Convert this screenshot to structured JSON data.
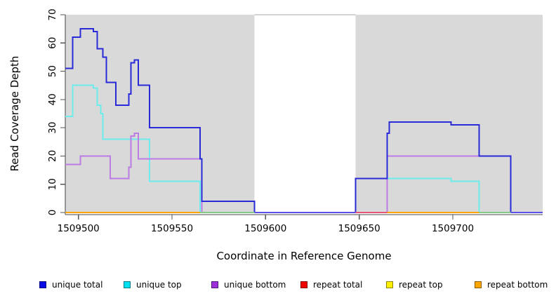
{
  "chart_data": {
    "type": "line",
    "subtype": "step-coverage",
    "title": "",
    "xlabel": "Coordinate in Reference Genome",
    "ylabel": "Read Coverage Depth",
    "xlim": [
      1509493,
      1509748
    ],
    "ylim": [
      0,
      70
    ],
    "grid": false,
    "legend_position": "bottom",
    "x_ticks": [
      1509500,
      1509550,
      1509600,
      1509650,
      1509700
    ],
    "x_tick_labels": [
      "1509500",
      "1509550",
      "1509600",
      "1509650",
      "1509700"
    ],
    "y_ticks": [
      0,
      10,
      20,
      30,
      40,
      50,
      60,
      70
    ],
    "y_tick_labels": [
      "0",
      "10",
      "20",
      "30",
      "40",
      "50",
      "60",
      "70"
    ],
    "axis_color": "#444444",
    "background_regions": [
      {
        "x0": 1509493,
        "x1": 1509594,
        "color": "#d9d9d9"
      },
      {
        "x0": 1509648,
        "x1": 1509748,
        "color": "#d9d9d9"
      }
    ],
    "gap_border": {
      "x0": 1509594,
      "x1": 1509648,
      "color": "#a6a6a6"
    },
    "series": [
      {
        "name": "unique total",
        "color": "#2a2ad8",
        "legend_color": "#0a0ae6",
        "points": [
          [
            1509493,
            51
          ],
          [
            1509497,
            62
          ],
          [
            1509501,
            65
          ],
          [
            1509508,
            64
          ],
          [
            1509510,
            58
          ],
          [
            1509513,
            55
          ],
          [
            1509515,
            46
          ],
          [
            1509520,
            38
          ],
          [
            1509527,
            42
          ],
          [
            1509528,
            53
          ],
          [
            1509530,
            54
          ],
          [
            1509532,
            45
          ],
          [
            1509538,
            30
          ],
          [
            1509565,
            19
          ],
          [
            1509566,
            4
          ],
          [
            1509594,
            0
          ],
          [
            1509648,
            12
          ],
          [
            1509665,
            28
          ],
          [
            1509666,
            32
          ],
          [
            1509699,
            31
          ],
          [
            1509714,
            20
          ],
          [
            1509731,
            0
          ],
          [
            1509748,
            0
          ]
        ]
      },
      {
        "name": "unique top",
        "color": "#6cecec",
        "legend_color": "#00e0f0",
        "points": [
          [
            1509493,
            34
          ],
          [
            1509497,
            45
          ],
          [
            1509508,
            44
          ],
          [
            1509510,
            38
          ],
          [
            1509512,
            35
          ],
          [
            1509513,
            26
          ],
          [
            1509538,
            11
          ],
          [
            1509565,
            0
          ],
          [
            1509648,
            12
          ],
          [
            1509699,
            11
          ],
          [
            1509714,
            0
          ],
          [
            1509748,
            0
          ]
        ]
      },
      {
        "name": "unique bottom",
        "color": "#bc7ce4",
        "legend_color": "#9b30d9",
        "points": [
          [
            1509493,
            17
          ],
          [
            1509501,
            20
          ],
          [
            1509517,
            12
          ],
          [
            1509527,
            16
          ],
          [
            1509528,
            27
          ],
          [
            1509530,
            28
          ],
          [
            1509532,
            19
          ],
          [
            1509566,
            0
          ],
          [
            1509665,
            20
          ],
          [
            1509731,
            0
          ],
          [
            1509748,
            0
          ]
        ]
      },
      {
        "name": "repeat total",
        "color": "#e00000",
        "legend_color": "#f00000",
        "points": [
          [
            1509493,
            0
          ],
          [
            1509748,
            0
          ]
        ]
      },
      {
        "name": "repeat top",
        "color": "#fff000",
        "legend_color": "#fff000",
        "points": [
          [
            1509493,
            0
          ],
          [
            1509748,
            0
          ]
        ]
      },
      {
        "name": "repeat bottom",
        "color": "#ffa500",
        "legend_color": "#ffa500",
        "points": [
          [
            1509493,
            0
          ],
          [
            1509748,
            0
          ]
        ]
      }
    ],
    "zero_line_segments": [
      {
        "x0": 1509493,
        "x1": 1509565,
        "color": "#ffa500"
      },
      {
        "x0": 1509565,
        "x1": 1509594,
        "color": "#86c986"
      },
      {
        "x0": 1509594,
        "x1": 1509648,
        "color": "#5b51e6"
      },
      {
        "x0": 1509648,
        "x1": 1509665,
        "color": "#e25577"
      },
      {
        "x0": 1509665,
        "x1": 1509714,
        "color": "#ffa500"
      },
      {
        "x0": 1509714,
        "x1": 1509731,
        "color": "#86c986"
      },
      {
        "x0": 1509731,
        "x1": 1509748,
        "color": "#5b51e6"
      }
    ]
  }
}
